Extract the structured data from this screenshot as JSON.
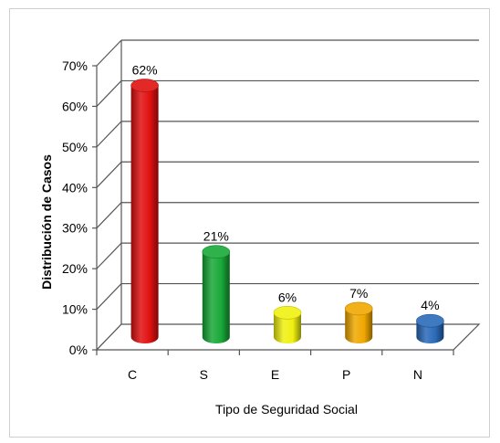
{
  "chart_data": {
    "type": "bar",
    "style": "3d-cylinder",
    "categories": [
      "C",
      "S",
      "E",
      "P",
      "N"
    ],
    "values": [
      62,
      21,
      6,
      7,
      4
    ],
    "value_labels": [
      "62%",
      "21%",
      "6%",
      "7%",
      "4%"
    ],
    "colors": [
      "#e01010",
      "#18a838",
      "#f0f010",
      "#f0a800",
      "#2a6ab8"
    ],
    "title": "",
    "xlabel": "Tipo de Seguridad Social",
    "ylabel": "Distribución de Casos",
    "ylim": [
      0,
      70
    ],
    "yticks": [
      0,
      10,
      20,
      30,
      40,
      50,
      60,
      70
    ],
    "ytick_labels": [
      "0%",
      "10%",
      "20%",
      "30%",
      "40%",
      "50%",
      "60%",
      "70%"
    ],
    "grid": true,
    "legend": "none"
  }
}
